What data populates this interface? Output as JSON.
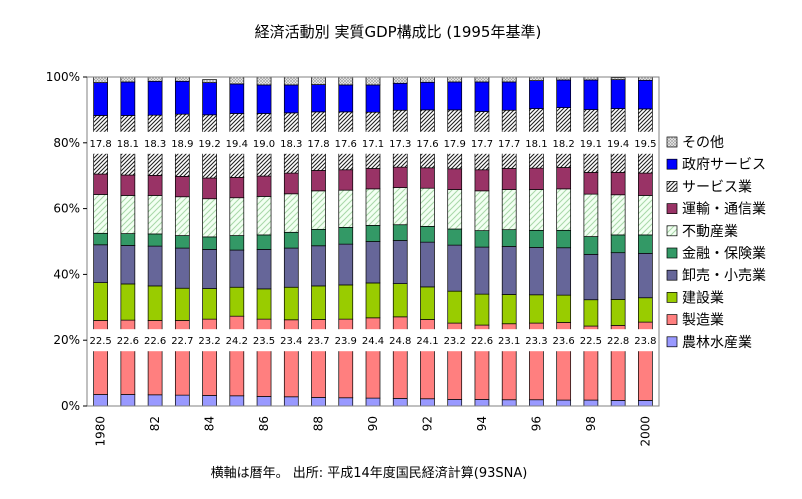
{
  "chart_data": {
    "type": "bar",
    "stacked": true,
    "title": "経済活動別 実質GDP構成比 (1995年基準)",
    "footer": "横軸は暦年。 出所: 平成14年度国民経済計算(93SNA)",
    "ylim": [
      0,
      100
    ],
    "y_ticks": [
      "0%",
      "20%",
      "40%",
      "60%",
      "80%",
      "100%"
    ],
    "x": [
      1980,
      1981,
      1982,
      1983,
      1984,
      1985,
      1986,
      1987,
      1988,
      1989,
      1990,
      1991,
      1992,
      1993,
      1994,
      1995,
      1996,
      1997,
      1998,
      1999,
      2000
    ],
    "x_tick_labels": [
      "1980",
      "82",
      "84",
      "86",
      "88",
      "90",
      "92",
      "94",
      "96",
      "98",
      "2000"
    ],
    "legend_position": "right",
    "series": [
      {
        "name": "農林水産業",
        "color": "#9999ff",
        "pattern": "solid",
        "values": [
          3.5,
          3.5,
          3.4,
          3.3,
          3.2,
          3.1,
          2.9,
          2.8,
          2.6,
          2.5,
          2.4,
          2.3,
          2.2,
          2.0,
          2.0,
          1.9,
          1.9,
          1.8,
          1.8,
          1.7,
          1.7
        ]
      },
      {
        "name": "製造業",
        "color": "#ff7f7f",
        "pattern": "solid",
        "values": [
          22.5,
          22.6,
          22.6,
          22.7,
          23.2,
          24.2,
          23.5,
          23.4,
          23.7,
          23.9,
          24.4,
          24.8,
          24.1,
          23.2,
          22.6,
          23.1,
          23.3,
          23.6,
          22.5,
          22.8,
          23.8
        ]
      },
      {
        "name": "建設業",
        "color": "#99cc00",
        "pattern": "solid",
        "values": [
          11.5,
          11.0,
          10.5,
          9.8,
          9.3,
          8.8,
          9.2,
          9.9,
          10.2,
          10.4,
          10.6,
          10.1,
          9.9,
          9.7,
          9.4,
          8.9,
          8.6,
          8.3,
          8.0,
          7.9,
          7.4
        ]
      },
      {
        "name": "卸売・小売業",
        "color": "#666699",
        "pattern": "solid",
        "values": [
          11.5,
          11.7,
          12.1,
          12.2,
          11.9,
          11.3,
          12.0,
          11.9,
          12.2,
          12.4,
          12.6,
          13.1,
          13.6,
          14.0,
          14.3,
          14.6,
          14.4,
          14.4,
          13.8,
          14.2,
          13.5
        ]
      },
      {
        "name": "金融・保険業",
        "color": "#339966",
        "pattern": "solid",
        "values": [
          3.5,
          3.6,
          3.7,
          3.8,
          3.8,
          4.4,
          4.4,
          4.8,
          5.0,
          5.1,
          4.9,
          4.8,
          4.8,
          4.9,
          5.0,
          5.1,
          5.2,
          5.3,
          5.4,
          5.4,
          5.6
        ]
      },
      {
        "name": "不動産業",
        "color": "#f2fff2",
        "pattern": "diag-green",
        "values": [
          11.8,
          11.6,
          11.7,
          11.8,
          11.6,
          11.5,
          11.7,
          11.7,
          11.7,
          11.3,
          11.1,
          11.3,
          11.6,
          12.0,
          12.1,
          12.2,
          12.4,
          12.6,
          12.9,
          12.2,
          12.0
        ]
      },
      {
        "name": "運輸・通信業",
        "color": "#993366",
        "pattern": "solid",
        "values": [
          6.2,
          6.2,
          6.1,
          6.2,
          6.3,
          6.2,
          6.2,
          6.3,
          6.2,
          6.2,
          6.2,
          6.2,
          6.2,
          6.3,
          6.4,
          6.4,
          6.5,
          6.5,
          6.6,
          6.8,
          6.8
        ]
      },
      {
        "name": "サービス業",
        "color": "#ffffff",
        "pattern": "crosshatch",
        "values": [
          17.8,
          18.1,
          18.3,
          18.9,
          19.2,
          19.4,
          19.0,
          18.3,
          17.8,
          17.6,
          17.1,
          17.3,
          17.6,
          17.9,
          17.7,
          17.7,
          18.1,
          18.2,
          19.1,
          19.4,
          19.5
        ]
      },
      {
        "name": "政府サービス",
        "color": "#0000ff",
        "pattern": "solid",
        "values": [
          10.0,
          10.2,
          10.3,
          10.0,
          9.8,
          9.0,
          8.7,
          8.5,
          8.3,
          8.2,
          8.3,
          8.2,
          8.4,
          8.5,
          9.0,
          8.6,
          8.5,
          8.4,
          9.0,
          8.8,
          8.7
        ]
      },
      {
        "name": "その他",
        "color": "#dddddd",
        "pattern": "grid",
        "values": [
          1.7,
          1.5,
          1.3,
          1.3,
          0.9,
          2.1,
          2.4,
          2.4,
          2.3,
          2.4,
          2.4,
          1.9,
          1.6,
          1.5,
          1.5,
          1.5,
          1.1,
          0.9,
          0.9,
          0.6,
          1.0
        ]
      }
    ],
    "band_labels": [
      {
        "series": "製造業",
        "at": 20
      },
      {
        "series": "サービス業",
        "at": 80
      }
    ]
  }
}
